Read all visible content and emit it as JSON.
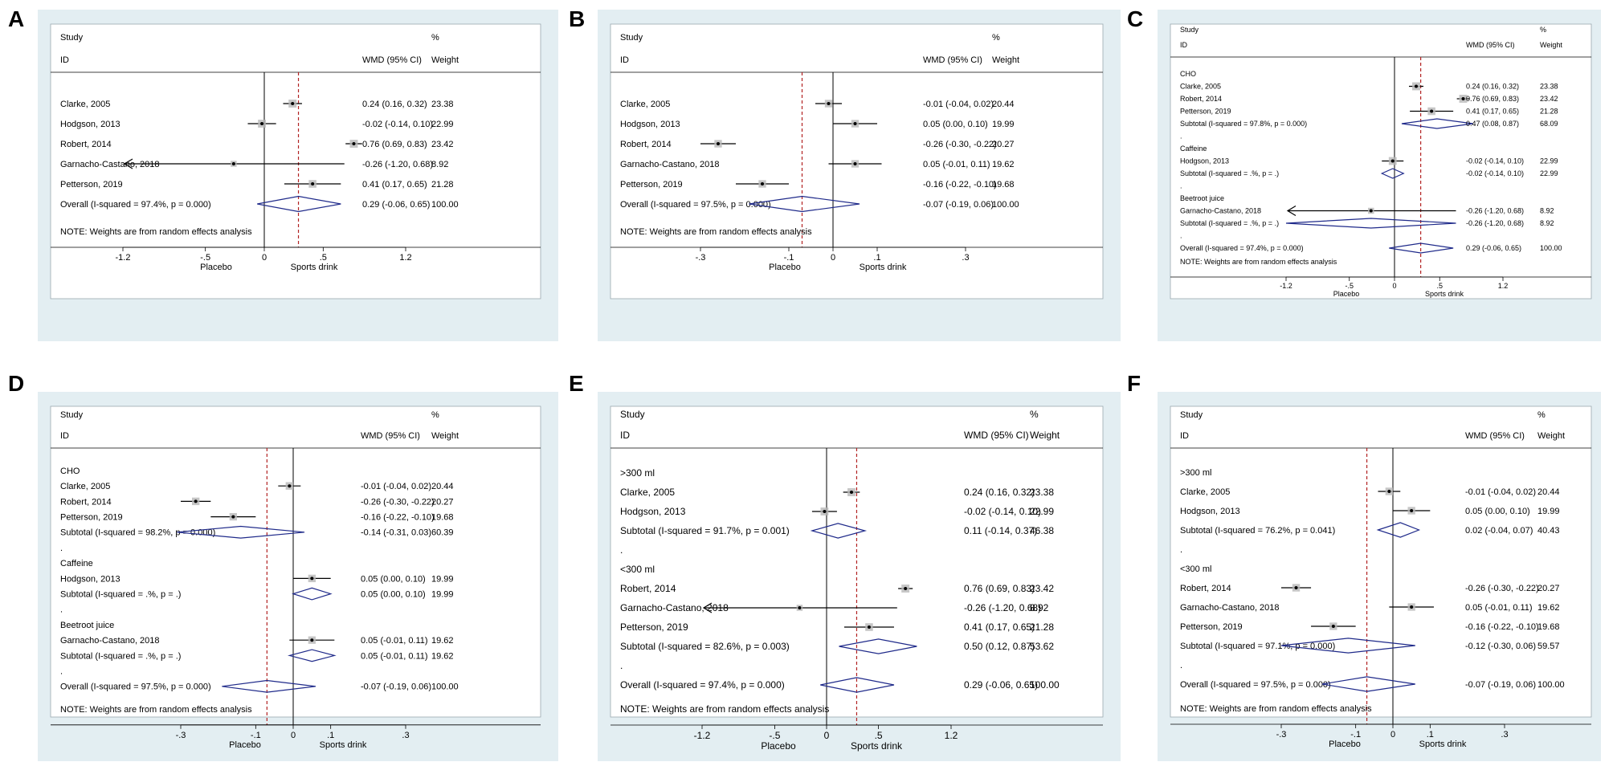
{
  "chart_data": [
    {
      "panel": "A",
      "type": "forest",
      "header": {
        "study": "Study",
        "id": "ID",
        "effect": "WMD (95% CI)",
        "pct": "%",
        "weight": "Weight"
      },
      "rows": [
        {
          "kind": "study",
          "label": "Clarke, 2005",
          "est": 0.24,
          "lo": 0.16,
          "hi": 0.32,
          "ci_text": "0.24 (0.16, 0.32)",
          "weight": "23.38"
        },
        {
          "kind": "study",
          "label": "Hodgson, 2013",
          "est": -0.02,
          "lo": -0.14,
          "hi": 0.1,
          "ci_text": "-0.02 (-0.14, 0.10)",
          "weight": "22.99"
        },
        {
          "kind": "study",
          "label": "Robert, 2014",
          "est": 0.76,
          "lo": 0.69,
          "hi": 0.83,
          "ci_text": "0.76 (0.69, 0.83)",
          "weight": "23.42"
        },
        {
          "kind": "study",
          "label": "Garnacho-Castano, 2018",
          "est": -0.26,
          "lo": -1.2,
          "hi": 0.68,
          "ci_text": "-0.26 (-1.20, 0.68)",
          "weight": "8.92",
          "arrow_left": true
        },
        {
          "kind": "study",
          "label": "Petterson, 2019",
          "est": 0.41,
          "lo": 0.17,
          "hi": 0.65,
          "ci_text": "0.41 (0.17, 0.65)",
          "weight": "21.28"
        },
        {
          "kind": "overall",
          "label": "Overall  (I-squared = 97.4%, p = 0.000)",
          "est": 0.29,
          "lo": -0.06,
          "hi": 0.65,
          "ci_text": "0.29 (-0.06, 0.65)",
          "weight": "100.00"
        }
      ],
      "note": "NOTE: Weights are from random effects analysis",
      "x_ticks": [
        {
          "v": -1.2,
          "t": "-1.2"
        },
        {
          "v": -0.5,
          "t": "-.5"
        },
        {
          "v": 0,
          "t": "0"
        },
        {
          "v": 0.5,
          "t": ".5"
        },
        {
          "v": 1.2,
          "t": "1.2"
        }
      ],
      "x_range": [
        -1.2,
        1.2
      ],
      "label_left": "Placebo",
      "label_right": "Sports drink",
      "pooled": 0.29
    },
    {
      "panel": "B",
      "type": "forest",
      "header": {
        "study": "Study",
        "id": "ID",
        "effect": "WMD (95% CI)",
        "pct": "%",
        "weight": "Weight"
      },
      "rows": [
        {
          "kind": "study",
          "label": "Clarke, 2005",
          "est": -0.01,
          "lo": -0.04,
          "hi": 0.02,
          "ci_text": "-0.01 (-0.04, 0.02)",
          "weight": "20.44"
        },
        {
          "kind": "study",
          "label": "Hodgson, 2013",
          "est": 0.05,
          "lo": 0.0,
          "hi": 0.1,
          "ci_text": "0.05 (0.00, 0.10)",
          "weight": "19.99"
        },
        {
          "kind": "study",
          "label": "Robert, 2014",
          "est": -0.26,
          "lo": -0.3,
          "hi": -0.22,
          "ci_text": "-0.26 (-0.30, -0.22)",
          "weight": "20.27"
        },
        {
          "kind": "study",
          "label": "Garnacho-Castano, 2018",
          "est": 0.05,
          "lo": -0.01,
          "hi": 0.11,
          "ci_text": "0.05 (-0.01, 0.11)",
          "weight": "19.62"
        },
        {
          "kind": "study",
          "label": "Petterson, 2019",
          "est": -0.16,
          "lo": -0.22,
          "hi": -0.1,
          "ci_text": "-0.16 (-0.22, -0.10)",
          "weight": "19.68"
        },
        {
          "kind": "overall",
          "label": "Overall  (I-squared = 97.5%, p = 0.000)",
          "est": -0.07,
          "lo": -0.19,
          "hi": 0.06,
          "ci_text": "-0.07 (-0.19, 0.06)",
          "weight": "100.00"
        }
      ],
      "note": "NOTE: Weights are from random effects analysis",
      "x_ticks": [
        {
          "v": -0.3,
          "t": "-.3"
        },
        {
          "v": -0.1,
          "t": "-.1"
        },
        {
          "v": 0,
          "t": "0"
        },
        {
          "v": 0.1,
          "t": ".1"
        },
        {
          "v": 0.3,
          "t": ".3"
        }
      ],
      "x_range": [
        -0.3,
        0.3
      ],
      "label_left": "Placebo",
      "label_right": "Sports drink",
      "pooled": -0.07
    },
    {
      "panel": "C",
      "type": "forest",
      "header": {
        "study": "Study",
        "id": "ID",
        "effect": "WMD (95% CI)",
        "pct": "%",
        "weight": "Weight"
      },
      "rows": [
        {
          "kind": "group",
          "label": "CHO"
        },
        {
          "kind": "study",
          "label": "Clarke, 2005",
          "est": 0.24,
          "lo": 0.16,
          "hi": 0.32,
          "ci_text": "0.24 (0.16, 0.32)",
          "weight": "23.38"
        },
        {
          "kind": "study",
          "label": "Robert, 2014",
          "est": 0.76,
          "lo": 0.69,
          "hi": 0.83,
          "ci_text": "0.76 (0.69, 0.83)",
          "weight": "23.42"
        },
        {
          "kind": "study",
          "label": "Petterson, 2019",
          "est": 0.41,
          "lo": 0.17,
          "hi": 0.65,
          "ci_text": "0.41 (0.17, 0.65)",
          "weight": "21.28"
        },
        {
          "kind": "subtotal",
          "label": "Subtotal  (I-squared = 97.8%, p = 0.000)",
          "est": 0.47,
          "lo": 0.08,
          "hi": 0.87,
          "ci_text": "0.47 (0.08, 0.87)",
          "weight": "68.09"
        },
        {
          "kind": "dot",
          "label": "."
        },
        {
          "kind": "group",
          "label": "Caffeine"
        },
        {
          "kind": "study",
          "label": "Hodgson, 2013",
          "est": -0.02,
          "lo": -0.14,
          "hi": 0.1,
          "ci_text": "-0.02 (-0.14, 0.10)",
          "weight": "22.99"
        },
        {
          "kind": "subtotal",
          "label": "Subtotal  (I-squared = .%, p = .)",
          "est": -0.02,
          "lo": -0.14,
          "hi": 0.1,
          "ci_text": "-0.02 (-0.14, 0.10)",
          "weight": "22.99"
        },
        {
          "kind": "dot",
          "label": "."
        },
        {
          "kind": "group",
          "label": "Beetroot juice"
        },
        {
          "kind": "study",
          "label": "Garnacho-Castano, 2018",
          "est": -0.26,
          "lo": -1.2,
          "hi": 0.68,
          "ci_text": "-0.26 (-1.20, 0.68)",
          "weight": "8.92",
          "arrow_left": true
        },
        {
          "kind": "subtotal",
          "label": "Subtotal  (I-squared = .%, p = .)",
          "est": -0.26,
          "lo": -1.2,
          "hi": 0.68,
          "ci_text": "-0.26 (-1.20, 0.68)",
          "weight": "8.92"
        },
        {
          "kind": "dot",
          "label": "."
        },
        {
          "kind": "overall",
          "label": "Overall  (I-squared = 97.4%, p = 0.000)",
          "est": 0.29,
          "lo": -0.06,
          "hi": 0.65,
          "ci_text": "0.29 (-0.06, 0.65)",
          "weight": "100.00"
        }
      ],
      "note": "NOTE: Weights are from random effects analysis",
      "x_ticks": [
        {
          "v": -1.2,
          "t": "-1.2"
        },
        {
          "v": -0.5,
          "t": "-.5"
        },
        {
          "v": 0,
          "t": "0"
        },
        {
          "v": 0.5,
          "t": ".5"
        },
        {
          "v": 1.2,
          "t": "1.2"
        }
      ],
      "x_range": [
        -1.2,
        1.2
      ],
      "label_left": "Placebo",
      "label_right": "Sports drink",
      "pooled": 0.29
    },
    {
      "panel": "D",
      "type": "forest",
      "header": {
        "study": "Study",
        "id": "ID",
        "effect": "WMD (95% CI)",
        "pct": "%",
        "weight": "Weight"
      },
      "rows": [
        {
          "kind": "group",
          "label": "CHO"
        },
        {
          "kind": "study",
          "label": "Clarke, 2005",
          "est": -0.01,
          "lo": -0.04,
          "hi": 0.02,
          "ci_text": "-0.01 (-0.04, 0.02)",
          "weight": "20.44"
        },
        {
          "kind": "study",
          "label": "Robert, 2014",
          "est": -0.26,
          "lo": -0.3,
          "hi": -0.22,
          "ci_text": "-0.26 (-0.30, -0.22)",
          "weight": "20.27"
        },
        {
          "kind": "study",
          "label": "Petterson, 2019",
          "est": -0.16,
          "lo": -0.22,
          "hi": -0.1,
          "ci_text": "-0.16 (-0.22, -0.10)",
          "weight": "19.68"
        },
        {
          "kind": "subtotal",
          "label": "Subtotal  (I-squared = 98.2%, p = 0.000)",
          "est": -0.14,
          "lo": -0.31,
          "hi": 0.03,
          "ci_text": "-0.14 (-0.31, 0.03)",
          "weight": "60.39"
        },
        {
          "kind": "dot",
          "label": "."
        },
        {
          "kind": "group",
          "label": "Caffeine"
        },
        {
          "kind": "study",
          "label": "Hodgson, 2013",
          "est": 0.05,
          "lo": 0.0,
          "hi": 0.1,
          "ci_text": "0.05 (0.00, 0.10)",
          "weight": "19.99"
        },
        {
          "kind": "subtotal",
          "label": "Subtotal  (I-squared = .%, p = .)",
          "est": 0.05,
          "lo": 0.0,
          "hi": 0.1,
          "ci_text": "0.05 (0.00, 0.10)",
          "weight": "19.99"
        },
        {
          "kind": "dot",
          "label": "."
        },
        {
          "kind": "group",
          "label": "Beetroot juice"
        },
        {
          "kind": "study",
          "label": "Garnacho-Castano, 2018",
          "est": 0.05,
          "lo": -0.01,
          "hi": 0.11,
          "ci_text": "0.05 (-0.01, 0.11)",
          "weight": "19.62"
        },
        {
          "kind": "subtotal",
          "label": "Subtotal  (I-squared = .%, p = .)",
          "est": 0.05,
          "lo": -0.01,
          "hi": 0.11,
          "ci_text": "0.05 (-0.01, 0.11)",
          "weight": "19.62"
        },
        {
          "kind": "dot",
          "label": "."
        },
        {
          "kind": "overall",
          "label": "Overall  (I-squared = 97.5%, p = 0.000)",
          "est": -0.07,
          "lo": -0.19,
          "hi": 0.06,
          "ci_text": "-0.07 (-0.19, 0.06)",
          "weight": "100.00"
        }
      ],
      "note": "NOTE: Weights are from random effects analysis",
      "x_ticks": [
        {
          "v": -0.3,
          "t": "-.3"
        },
        {
          "v": -0.1,
          "t": "-.1"
        },
        {
          "v": 0,
          "t": "0"
        },
        {
          "v": 0.1,
          "t": ".1"
        },
        {
          "v": 0.3,
          "t": ".3"
        }
      ],
      "x_range": [
        -0.3,
        0.3
      ],
      "label_left": "Placebo",
      "label_right": "Sports drink",
      "pooled": -0.07
    },
    {
      "panel": "E",
      "type": "forest",
      "header": {
        "study": "Study",
        "id": "ID",
        "effect": "WMD (95% CI)",
        "pct": "%",
        "weight": "Weight"
      },
      "rows": [
        {
          "kind": "group",
          "label": ">300 ml"
        },
        {
          "kind": "study",
          "label": "Clarke, 2005",
          "est": 0.24,
          "lo": 0.16,
          "hi": 0.32,
          "ci_text": "0.24 (0.16, 0.32)",
          "weight": "23.38"
        },
        {
          "kind": "study",
          "label": "Hodgson, 2013",
          "est": -0.02,
          "lo": -0.14,
          "hi": 0.1,
          "ci_text": "-0.02 (-0.14, 0.10)",
          "weight": "22.99"
        },
        {
          "kind": "subtotal",
          "label": "Subtotal  (I-squared = 91.7%, p = 0.001)",
          "est": 0.11,
          "lo": -0.14,
          "hi": 0.37,
          "ci_text": "0.11 (-0.14, 0.37)",
          "weight": "46.38"
        },
        {
          "kind": "dot",
          "label": "."
        },
        {
          "kind": "group",
          "label": "<300 ml"
        },
        {
          "kind": "study",
          "label": "Robert, 2014",
          "est": 0.76,
          "lo": 0.69,
          "hi": 0.83,
          "ci_text": "0.76 (0.69, 0.83)",
          "weight": "23.42"
        },
        {
          "kind": "study",
          "label": "Garnacho-Castano, 2018",
          "est": -0.26,
          "lo": -1.2,
          "hi": 0.68,
          "ci_text": "-0.26 (-1.20, 0.68)",
          "weight": "8.92",
          "arrow_left": true
        },
        {
          "kind": "study",
          "label": "Petterson, 2019",
          "est": 0.41,
          "lo": 0.17,
          "hi": 0.65,
          "ci_text": "0.41 (0.17, 0.65)",
          "weight": "21.28"
        },
        {
          "kind": "subtotal",
          "label": "Subtotal  (I-squared = 82.6%, p = 0.003)",
          "est": 0.5,
          "lo": 0.12,
          "hi": 0.87,
          "ci_text": "0.50 (0.12, 0.87)",
          "weight": "53.62"
        },
        {
          "kind": "dot",
          "label": "."
        },
        {
          "kind": "overall",
          "label": "Overall  (I-squared = 97.4%, p = 0.000)",
          "est": 0.29,
          "lo": -0.06,
          "hi": 0.65,
          "ci_text": "0.29 (-0.06, 0.65)",
          "weight": "100.00"
        }
      ],
      "note": "NOTE: Weights are from random effects analysis",
      "x_ticks": [
        {
          "v": -1.2,
          "t": "-1.2"
        },
        {
          "v": -0.5,
          "t": "-.5"
        },
        {
          "v": 0,
          "t": "0"
        },
        {
          "v": 0.5,
          "t": ".5"
        },
        {
          "v": 1.2,
          "t": "1.2"
        }
      ],
      "x_range": [
        -1.2,
        1.2
      ],
      "label_left": "Placebo",
      "label_right": "Sports drink",
      "pooled": 0.29
    },
    {
      "panel": "F",
      "type": "forest",
      "header": {
        "study": "Study",
        "id": "ID",
        "effect": "WMD (95% CI)",
        "pct": "%",
        "weight": "Weight"
      },
      "rows": [
        {
          "kind": "group",
          "label": ">300 ml"
        },
        {
          "kind": "study",
          "label": "Clarke, 2005",
          "est": -0.01,
          "lo": -0.04,
          "hi": 0.02,
          "ci_text": "-0.01 (-0.04, 0.02)",
          "weight": "20.44"
        },
        {
          "kind": "study",
          "label": "Hodgson, 2013",
          "est": 0.05,
          "lo": 0.0,
          "hi": 0.1,
          "ci_text": "0.05 (0.00, 0.10)",
          "weight": "19.99"
        },
        {
          "kind": "subtotal",
          "label": "Subtotal  (I-squared = 76.2%, p = 0.041)",
          "est": 0.02,
          "lo": -0.04,
          "hi": 0.07,
          "ci_text": "0.02 (-0.04, 0.07)",
          "weight": "40.43"
        },
        {
          "kind": "dot",
          "label": "."
        },
        {
          "kind": "group",
          "label": "<300 ml"
        },
        {
          "kind": "study",
          "label": "Robert, 2014",
          "est": -0.26,
          "lo": -0.3,
          "hi": -0.22,
          "ci_text": "-0.26 (-0.30, -0.22)",
          "weight": "20.27"
        },
        {
          "kind": "study",
          "label": "Garnacho-Castano, 2018",
          "est": 0.05,
          "lo": -0.01,
          "hi": 0.11,
          "ci_text": "0.05 (-0.01, 0.11)",
          "weight": "19.62"
        },
        {
          "kind": "study",
          "label": "Petterson, 2019",
          "est": -0.16,
          "lo": -0.22,
          "hi": -0.1,
          "ci_text": "-0.16 (-0.22, -0.10)",
          "weight": "19.68"
        },
        {
          "kind": "subtotal",
          "label": "Subtotal  (I-squared = 97.1%, p = 0.000)",
          "est": -0.12,
          "lo": -0.3,
          "hi": 0.06,
          "ci_text": "-0.12 (-0.30, 0.06)",
          "weight": "59.57"
        },
        {
          "kind": "dot",
          "label": "."
        },
        {
          "kind": "overall",
          "label": "Overall  (I-squared = 97.5%, p = 0.000)",
          "est": -0.07,
          "lo": -0.19,
          "hi": 0.06,
          "ci_text": "-0.07 (-0.19, 0.06)",
          "weight": "100.00"
        }
      ],
      "note": "NOTE: Weights are from random effects analysis",
      "x_ticks": [
        {
          "v": -0.3,
          "t": "-.3"
        },
        {
          "v": -0.1,
          "t": "-.1"
        },
        {
          "v": 0,
          "t": "0"
        },
        {
          "v": 0.1,
          "t": ".1"
        },
        {
          "v": 0.3,
          "t": ".3"
        }
      ],
      "x_range": [
        -0.3,
        0.3
      ],
      "label_left": "Placebo",
      "label_right": "Sports drink",
      "pooled": -0.07
    }
  ],
  "colors": {
    "background": "#e3eef2",
    "plot_area": "#ffffff",
    "diamond": "#1f2a8a",
    "pooled_line": "#b22222",
    "ink": "#000000"
  }
}
